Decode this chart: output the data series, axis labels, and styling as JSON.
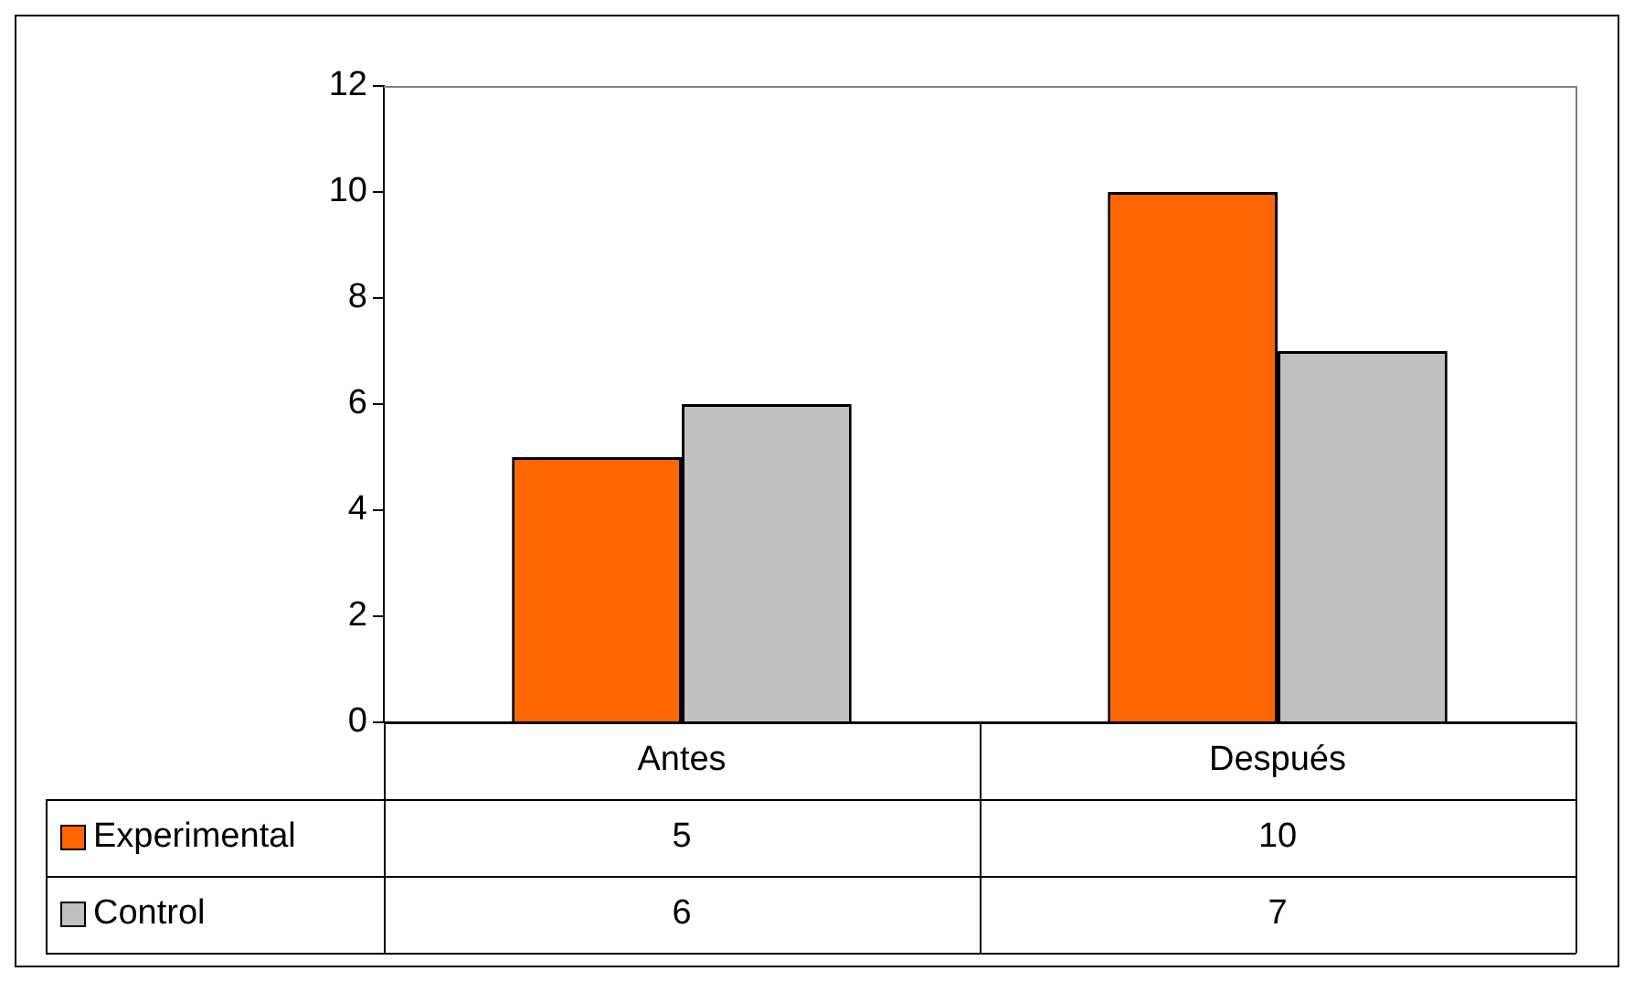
{
  "chart_data": {
    "type": "bar",
    "categories": [
      "Antes",
      "Después"
    ],
    "series": [
      {
        "name": "Experimental",
        "color": "#ff6600",
        "values": [
          5,
          10
        ]
      },
      {
        "name": "Control",
        "color": "#c0c0c0",
        "values": [
          6,
          7
        ]
      }
    ],
    "ylim": [
      0,
      12
    ],
    "yticks": [
      0,
      2,
      4,
      6,
      8,
      10,
      12
    ],
    "grid": false,
    "legend": "bottom",
    "data_labels": true
  }
}
